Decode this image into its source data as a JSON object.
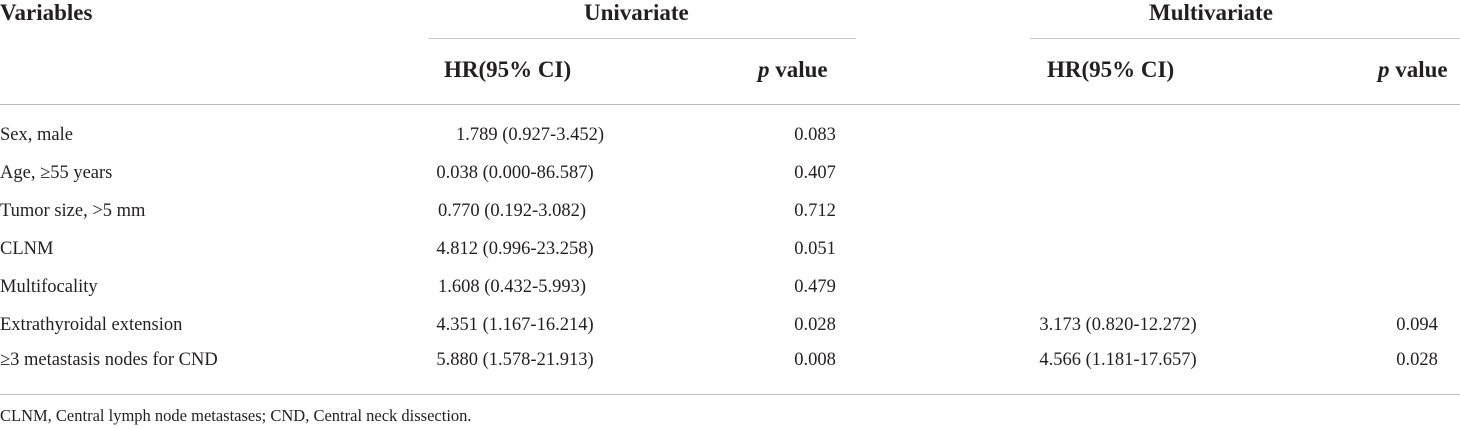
{
  "header": {
    "variables": "Variables",
    "univariate": "Univariate",
    "multivariate": "Multivariate",
    "hr_label": "HR(95% CI)",
    "p_italic": "p",
    "p_rest": " value"
  },
  "rows": [
    {
      "variable": "Sex, male",
      "uni_hr": "1.789 (0.927-3.452)",
      "uni_p": "0.083",
      "multi_hr": "",
      "multi_p": ""
    },
    {
      "variable": "Age, ≥55 years",
      "uni_hr": "0.038 (0.000-86.587)",
      "uni_p": "0.407",
      "multi_hr": "",
      "multi_p": ""
    },
    {
      "variable": "Tumor size, >5 mm",
      "uni_hr": "0.770 (0.192-3.082)",
      "uni_p": "0.712",
      "multi_hr": "",
      "multi_p": ""
    },
    {
      "variable": "CLNM",
      "uni_hr": "4.812 (0.996-23.258)",
      "uni_p": "0.051",
      "multi_hr": "",
      "multi_p": ""
    },
    {
      "variable": "Multifocality",
      "uni_hr": "1.608 (0.432-5.993)",
      "uni_p": "0.479",
      "multi_hr": "",
      "multi_p": ""
    },
    {
      "variable": "Extrathyroidal extension",
      "uni_hr": "4.351 (1.167-16.214)",
      "uni_p": "0.028",
      "multi_hr": "3.173 (0.820-12.272)",
      "multi_p": "0.094"
    },
    {
      "variable": "≥3 metastasis nodes for CND",
      "uni_hr": "5.880 (1.578-21.913)",
      "uni_p": "0.008",
      "multi_hr": "4.566 (1.181-17.657)",
      "multi_p": "0.028"
    }
  ],
  "footnote": "CLNM, Central lymph node metastases; CND, Central neck dissection."
}
